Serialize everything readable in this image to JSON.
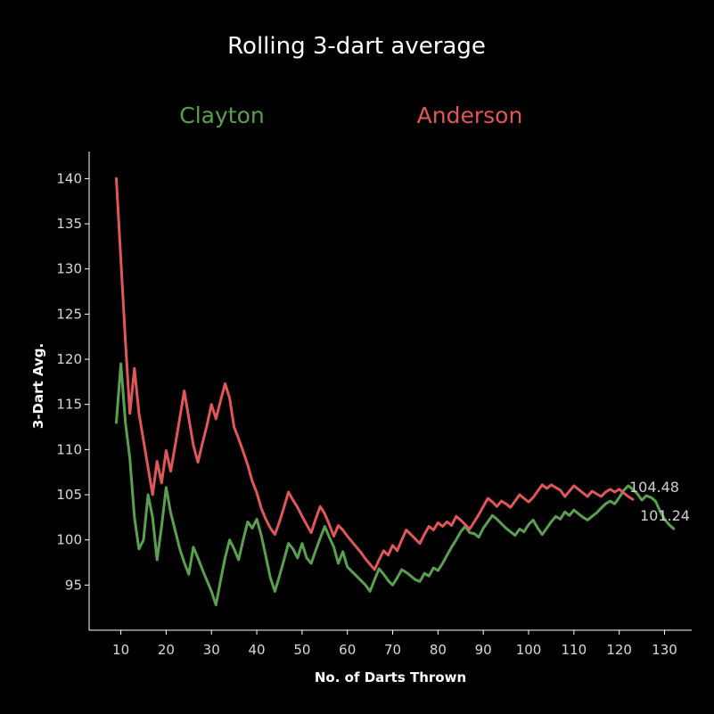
{
  "chart_data": {
    "type": "line",
    "title": "Rolling 3-dart average",
    "xlabel": "No. of Darts Thrown",
    "ylabel": "3-Dart Avg.",
    "xlim": [
      3,
      136
    ],
    "ylim": [
      90,
      143
    ],
    "xticks": [
      10,
      20,
      30,
      40,
      50,
      60,
      70,
      80,
      90,
      100,
      110,
      120,
      130
    ],
    "yticks": [
      95,
      100,
      105,
      110,
      115,
      120,
      125,
      130,
      135,
      140
    ],
    "grid": false,
    "series": [
      {
        "name": "Clayton",
        "color": "#59a14f",
        "end_label": "101.24",
        "points": [
          [
            9,
            113
          ],
          [
            10,
            119.5
          ],
          [
            11,
            113
          ],
          [
            12,
            109
          ],
          [
            13,
            102.5
          ],
          [
            14,
            99
          ],
          [
            15,
            100
          ],
          [
            16,
            105
          ],
          [
            17,
            102.5
          ],
          [
            18,
            97.8
          ],
          [
            19,
            101.5
          ],
          [
            20,
            105.8
          ],
          [
            21,
            103
          ],
          [
            22,
            101
          ],
          [
            23,
            99
          ],
          [
            24,
            97.5
          ],
          [
            25,
            96.2
          ],
          [
            26,
            99.2
          ],
          [
            27,
            98
          ],
          [
            28,
            96.7
          ],
          [
            29,
            95.5
          ],
          [
            30,
            94.3
          ],
          [
            31,
            92.8
          ],
          [
            32,
            95.5
          ],
          [
            33,
            98
          ],
          [
            34,
            100
          ],
          [
            35,
            99
          ],
          [
            36,
            97.8
          ],
          [
            37,
            100
          ],
          [
            38,
            102
          ],
          [
            39,
            101.3
          ],
          [
            40,
            102.3
          ],
          [
            41,
            100.5
          ],
          [
            42,
            98.2
          ],
          [
            43,
            95.8
          ],
          [
            44,
            94.3
          ],
          [
            45,
            96
          ],
          [
            46,
            97.8
          ],
          [
            47,
            99.6
          ],
          [
            48,
            99
          ],
          [
            49,
            98
          ],
          [
            50,
            99.6
          ],
          [
            51,
            98
          ],
          [
            52,
            97.4
          ],
          [
            53,
            98.8
          ],
          [
            54,
            100.2
          ],
          [
            55,
            101.5
          ],
          [
            56,
            100.3
          ],
          [
            57,
            99.2
          ],
          [
            58,
            97.4
          ],
          [
            59,
            98.7
          ],
          [
            60,
            97
          ],
          [
            61,
            96.5
          ],
          [
            62,
            96
          ],
          [
            63,
            95.5
          ],
          [
            64,
            95
          ],
          [
            65,
            94.3
          ],
          [
            66,
            95.6
          ],
          [
            67,
            96.8
          ],
          [
            68,
            96.2
          ],
          [
            69,
            95.5
          ],
          [
            70,
            95
          ],
          [
            71,
            95.8
          ],
          [
            72,
            96.7
          ],
          [
            73,
            96.4
          ],
          [
            74,
            96
          ],
          [
            75,
            95.6
          ],
          [
            76,
            95.4
          ],
          [
            77,
            96.3
          ],
          [
            78,
            96
          ],
          [
            79,
            96.9
          ],
          [
            80,
            96.6
          ],
          [
            81,
            97.4
          ],
          [
            82,
            98.3
          ],
          [
            83,
            99.2
          ],
          [
            84,
            100
          ],
          [
            85,
            100.9
          ],
          [
            86,
            101.5
          ],
          [
            87,
            100.8
          ],
          [
            88,
            100.7
          ],
          [
            89,
            100.3
          ],
          [
            90,
            101.3
          ],
          [
            91,
            102
          ],
          [
            92,
            102.7
          ],
          [
            93,
            102.3
          ],
          [
            94,
            101.8
          ],
          [
            95,
            101.3
          ],
          [
            96,
            100.9
          ],
          [
            97,
            100.5
          ],
          [
            98,
            101.2
          ],
          [
            99,
            100.9
          ],
          [
            100,
            101.7
          ],
          [
            101,
            102.2
          ],
          [
            102,
            101.3
          ],
          [
            103,
            100.6
          ],
          [
            104,
            101.3
          ],
          [
            105,
            102
          ],
          [
            106,
            102.6
          ],
          [
            107,
            102.3
          ],
          [
            108,
            103.1
          ],
          [
            109,
            102.7
          ],
          [
            110,
            103.3
          ],
          [
            111,
            102.9
          ],
          [
            112,
            102.5
          ],
          [
            113,
            102.2
          ],
          [
            114,
            102.6
          ],
          [
            115,
            103
          ],
          [
            116,
            103.5
          ],
          [
            117,
            104
          ],
          [
            118,
            104.3
          ],
          [
            119,
            104
          ],
          [
            120,
            104.7
          ],
          [
            121,
            105.5
          ],
          [
            122,
            106
          ],
          [
            123,
            105.6
          ],
          [
            124,
            105.1
          ],
          [
            125,
            104.4
          ],
          [
            126,
            104.9
          ],
          [
            127,
            104.7
          ],
          [
            128,
            104.3
          ],
          [
            129,
            103.2
          ],
          [
            130,
            102.3
          ],
          [
            131,
            101.7
          ],
          [
            132,
            101.24
          ]
        ]
      },
      {
        "name": "Anderson",
        "color": "#e15759",
        "end_label": "104.48",
        "points": [
          [
            9,
            140
          ],
          [
            10,
            131
          ],
          [
            11,
            122
          ],
          [
            12,
            114
          ],
          [
            13,
            119
          ],
          [
            14,
            114
          ],
          [
            15,
            111
          ],
          [
            16,
            108
          ],
          [
            17,
            105
          ],
          [
            18,
            108.7
          ],
          [
            19,
            106.3
          ],
          [
            20,
            109.9
          ],
          [
            21,
            107.6
          ],
          [
            22,
            110.5
          ],
          [
            23,
            113.5
          ],
          [
            24,
            116.5
          ],
          [
            25,
            113.5
          ],
          [
            26,
            110.5
          ],
          [
            27,
            108.6
          ],
          [
            28,
            110.7
          ],
          [
            29,
            112.7
          ],
          [
            30,
            115
          ],
          [
            31,
            113.4
          ],
          [
            32,
            115.4
          ],
          [
            33,
            117.3
          ],
          [
            34,
            115.7
          ],
          [
            35,
            112.5
          ],
          [
            36,
            111.2
          ],
          [
            37,
            109.8
          ],
          [
            38,
            108.3
          ],
          [
            39,
            106.5
          ],
          [
            40,
            105.2
          ],
          [
            41,
            103.5
          ],
          [
            42,
            102.3
          ],
          [
            43,
            101.3
          ],
          [
            44,
            100.6
          ],
          [
            45,
            102
          ],
          [
            46,
            103.6
          ],
          [
            47,
            105.3
          ],
          [
            48,
            104.4
          ],
          [
            49,
            103.6
          ],
          [
            50,
            102.6
          ],
          [
            51,
            101.7
          ],
          [
            52,
            100.8
          ],
          [
            53,
            102.3
          ],
          [
            54,
            103.7
          ],
          [
            55,
            102.9
          ],
          [
            56,
            101.7
          ],
          [
            57,
            100.4
          ],
          [
            58,
            101.6
          ],
          [
            59,
            101.1
          ],
          [
            60,
            100.4
          ],
          [
            61,
            99.8
          ],
          [
            62,
            99.2
          ],
          [
            63,
            98.6
          ],
          [
            64,
            97.9
          ],
          [
            65,
            97.3
          ],
          [
            66,
            96.7
          ],
          [
            67,
            97.8
          ],
          [
            68,
            98.8
          ],
          [
            69,
            98.3
          ],
          [
            70,
            99.4
          ],
          [
            71,
            98.8
          ],
          [
            72,
            100
          ],
          [
            73,
            101.1
          ],
          [
            74,
            100.6
          ],
          [
            75,
            100.1
          ],
          [
            76,
            99.6
          ],
          [
            77,
            100.6
          ],
          [
            78,
            101.5
          ],
          [
            79,
            101.1
          ],
          [
            80,
            101.9
          ],
          [
            81,
            101.5
          ],
          [
            82,
            102
          ],
          [
            83,
            101.6
          ],
          [
            84,
            102.6
          ],
          [
            85,
            102.2
          ],
          [
            86,
            101.7
          ],
          [
            87,
            101.2
          ],
          [
            88,
            102
          ],
          [
            89,
            102.8
          ],
          [
            90,
            103.7
          ],
          [
            91,
            104.6
          ],
          [
            92,
            104.2
          ],
          [
            93,
            103.7
          ],
          [
            94,
            104.3
          ],
          [
            95,
            104
          ],
          [
            96,
            103.6
          ],
          [
            97,
            104.3
          ],
          [
            98,
            105
          ],
          [
            99,
            104.6
          ],
          [
            100,
            104.2
          ],
          [
            101,
            104.7
          ],
          [
            102,
            105.4
          ],
          [
            103,
            106.1
          ],
          [
            104,
            105.7
          ],
          [
            105,
            106.1
          ],
          [
            106,
            105.8
          ],
          [
            107,
            105.5
          ],
          [
            108,
            104.8
          ],
          [
            109,
            105.4
          ],
          [
            110,
            106
          ],
          [
            111,
            105.6
          ],
          [
            112,
            105.2
          ],
          [
            113,
            104.8
          ],
          [
            114,
            105.4
          ],
          [
            115,
            105.1
          ],
          [
            116,
            104.8
          ],
          [
            117,
            105.3
          ],
          [
            118,
            105.6
          ],
          [
            119,
            105.3
          ],
          [
            120,
            105.6
          ],
          [
            121,
            105.2
          ],
          [
            122,
            104.8
          ],
          [
            123,
            104.48
          ]
        ]
      }
    ]
  }
}
